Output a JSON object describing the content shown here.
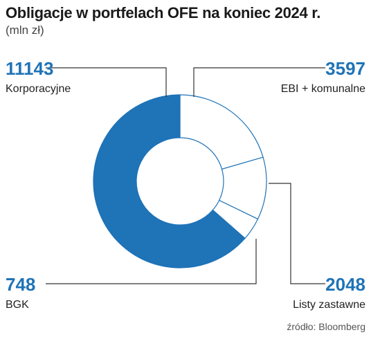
{
  "title": "Obligacje w portfelach OFE na koniec 2024 r.",
  "subtitle": "(mln zł)",
  "source": "źródło: Bloomberg",
  "colors": {
    "primary": "#1f73b7",
    "outline": "#1f73b7",
    "light": "#ffffff"
  },
  "chart_data": {
    "type": "pie",
    "variant": "donut",
    "categories": [
      "EBI + komunalne",
      "Listy zastawne",
      "BGK",
      "Korporacyjne"
    ],
    "values": [
      3597,
      2048,
      748,
      11143
    ],
    "labels": {
      "ebi": {
        "value": "3597",
        "name": "EBI + komunalne"
      },
      "listy": {
        "value": "2048",
        "name": "Listy zastawne"
      },
      "bgk": {
        "value": "748",
        "name": "BGK"
      },
      "korp": {
        "value": "11143",
        "name": "Korporacyjne"
      }
    }
  }
}
